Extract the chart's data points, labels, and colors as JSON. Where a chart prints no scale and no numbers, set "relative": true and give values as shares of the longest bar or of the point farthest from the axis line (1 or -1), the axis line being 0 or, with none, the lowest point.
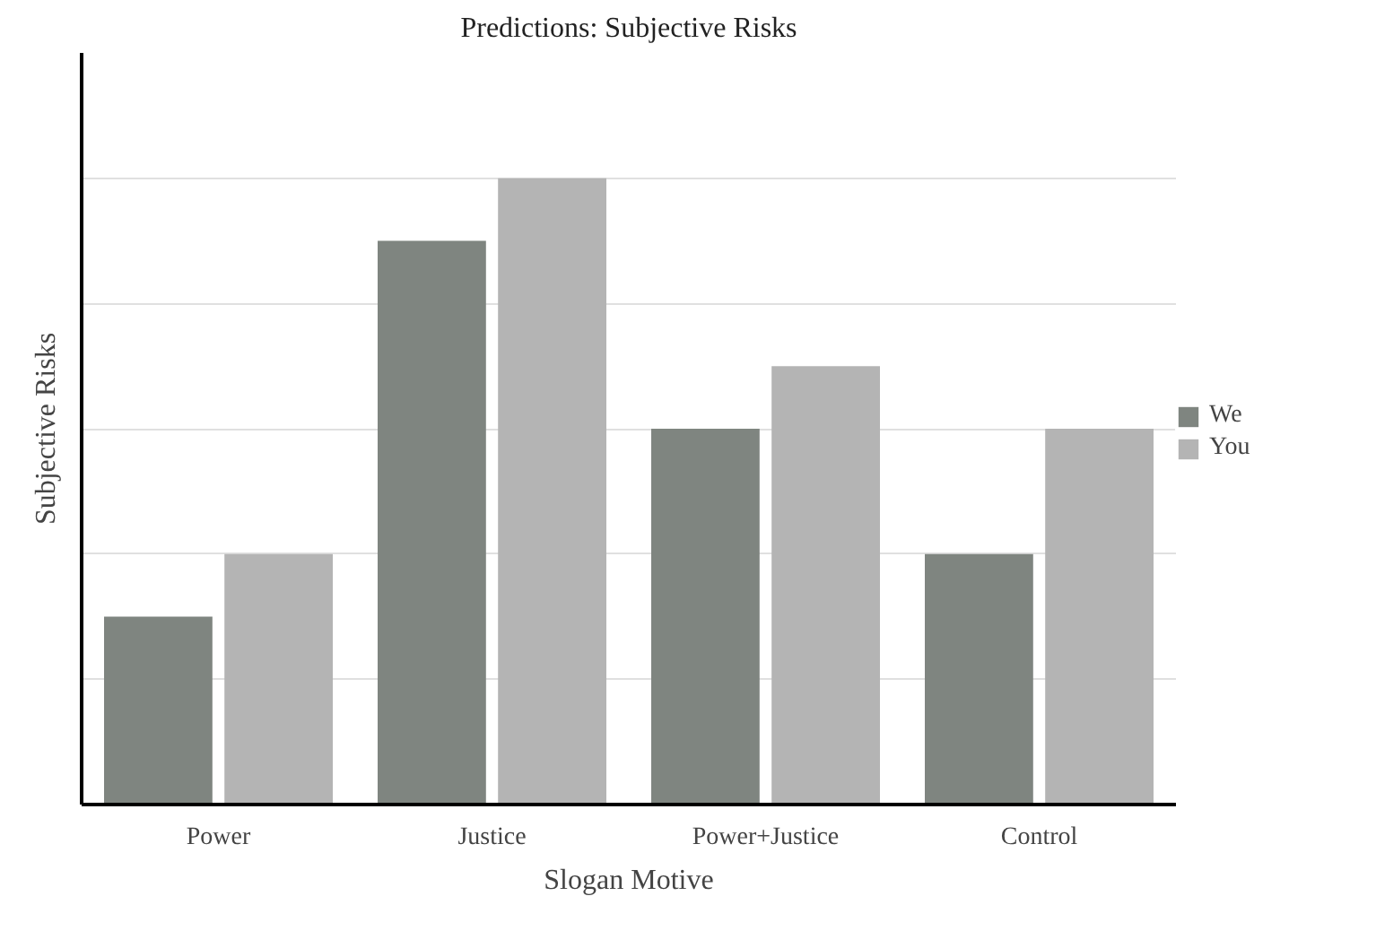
{
  "chart_data": {
    "type": "bar",
    "title": "Predictions: Subjective Risks",
    "xlabel": "Slogan Motive",
    "ylabel": "Subjective Risks",
    "categories": [
      "Power",
      "Justice",
      "Power+Justice",
      "Control"
    ],
    "series": [
      {
        "name": "We",
        "color": "#7f8580",
        "values": [
          0.3,
          0.9,
          0.6,
          0.4
        ]
      },
      {
        "name": "You",
        "color": "#b4b4b4",
        "values": [
          0.4,
          1,
          0.7,
          0.6
        ]
      }
    ],
    "relative": true,
    "grid": "y",
    "legend": "right"
  }
}
